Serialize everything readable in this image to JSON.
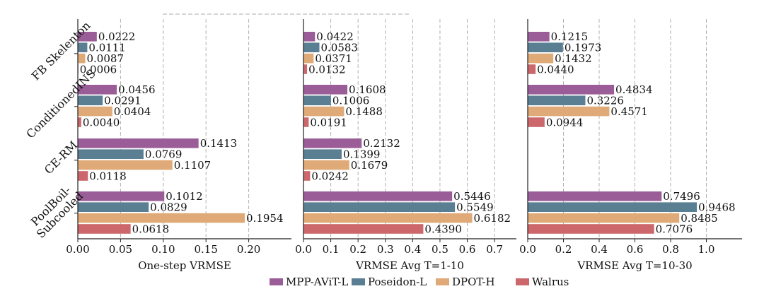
{
  "chart_data": {
    "type": "bar",
    "orientation": "horizontal",
    "categories": [
      "FB Skelenton",
      "ConditionedINS",
      "CE-RM",
      "PoolBoil-Subcooled"
    ],
    "category_label_lines": [
      [
        "FB Skelenton"
      ],
      [
        "ConditionedINS"
      ],
      [
        "CE-RM"
      ],
      [
        "PoolBoil-",
        "Subcooled"
      ]
    ],
    "series_names": [
      "MPP-AViT-L",
      "Poseidon-L",
      "DPOT-H",
      "Walrus"
    ],
    "colors": {
      "MPP-AViT-L": "#9b5d98",
      "Poseidon-L": "#5a7e92",
      "DPOT-H": "#e0aa78",
      "Walrus": "#cc686b"
    },
    "grid": true,
    "panels": [
      {
        "xlabel": "One-step VRMSE",
        "xlim": [
          0,
          0.25
        ],
        "xticks": [
          0.0,
          0.05,
          0.1,
          0.15,
          0.2
        ],
        "xtick_labels": [
          "0.00",
          "0.05",
          "0.10",
          "0.15",
          "0.20"
        ],
        "series": [
          {
            "name": "MPP-AViT-L",
            "values": [
              0.0222,
              0.0456,
              0.1413,
              0.1012
            ],
            "labels": [
              "0.0222",
              "0.0456",
              "0.1413",
              "0.1012"
            ]
          },
          {
            "name": "Poseidon-L",
            "values": [
              0.0111,
              0.0291,
              0.0769,
              0.0829
            ],
            "labels": [
              "0.0111",
              "0.0291",
              "0.0769",
              "0.0829"
            ]
          },
          {
            "name": "DPOT-H",
            "values": [
              0.0087,
              0.0404,
              0.1107,
              0.1954
            ],
            "labels": [
              "0.0087",
              "0.0404",
              "0.1107",
              "0.1954"
            ]
          },
          {
            "name": "Walrus",
            "values": [
              0.0006,
              0.004,
              0.0118,
              0.0618
            ],
            "labels": [
              "0.0006",
              "0.0040",
              "0.0118",
              "0.0618"
            ]
          }
        ]
      },
      {
        "xlabel": "VRMSE Avg T=1-10",
        "xlim": [
          0,
          0.78
        ],
        "xticks": [
          0.0,
          0.1,
          0.2,
          0.3,
          0.4,
          0.5,
          0.6,
          0.7
        ],
        "xtick_labels": [
          "0.0",
          "0.1",
          "0.2",
          "0.3",
          "0.4",
          "0.5",
          "0.6",
          "0.7"
        ],
        "series": [
          {
            "name": "MPP-AViT-L",
            "values": [
              0.0422,
              0.1608,
              0.2132,
              0.5446
            ],
            "labels": [
              "0.0422",
              "0.1608",
              "0.2132",
              "0.5446"
            ]
          },
          {
            "name": "Poseidon-L",
            "values": [
              0.0583,
              0.1006,
              0.1399,
              0.5549
            ],
            "labels": [
              "0.0583",
              "0.1006",
              "0.1399",
              "0.5549"
            ]
          },
          {
            "name": "DPOT-H",
            "values": [
              0.0371,
              0.1488,
              0.1679,
              0.6182
            ],
            "labels": [
              "0.0371",
              "0.1488",
              "0.1679",
              "0.6182"
            ]
          },
          {
            "name": "Walrus",
            "values": [
              0.0132,
              0.0191,
              0.0242,
              0.439
            ],
            "labels": [
              "0.0132",
              "0.0191",
              "0.0242",
              "0.4390"
            ]
          }
        ]
      },
      {
        "xlabel": "VRMSE Avg T=10-30",
        "xlim": [
          0,
          1.2
        ],
        "xticks": [
          0.0,
          0.2,
          0.4,
          0.6,
          0.8,
          1.0
        ],
        "xtick_labels": [
          "0.0",
          "0.2",
          "0.4",
          "0.6",
          "0.8",
          "1.0"
        ],
        "series": [
          {
            "name": "MPP-AViT-L",
            "values": [
              0.1215,
              0.4834,
              null,
              0.7496
            ],
            "labels": [
              "0.1215",
              "0.4834",
              null,
              "0.7496"
            ]
          },
          {
            "name": "Poseidon-L",
            "values": [
              0.1973,
              0.3226,
              null,
              0.9468
            ],
            "labels": [
              "0.1973",
              "0.3226",
              null,
              "0.9468"
            ]
          },
          {
            "name": "DPOT-H",
            "values": [
              0.1432,
              0.4571,
              null,
              0.8485
            ],
            "labels": [
              "0.1432",
              "0.4571",
              null,
              "0.8485"
            ]
          },
          {
            "name": "Walrus",
            "values": [
              0.044,
              0.0944,
              null,
              0.7076
            ],
            "labels": [
              "0.0440",
              "0.0944",
              null,
              "0.7076"
            ]
          }
        ]
      }
    ],
    "legend": {
      "position": "bottom-center",
      "entries": [
        "MPP-AViT-L",
        "Poseidon-L",
        "DPOT-H",
        "Walrus"
      ]
    }
  }
}
